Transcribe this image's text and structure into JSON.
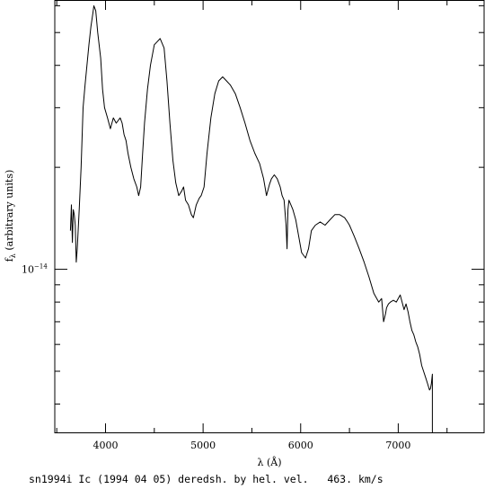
{
  "chart_data": {
    "type": "line",
    "title": "",
    "xlabel": "λ (Å)",
    "ylabel": "f_λ (arbitrary units)",
    "ylabel_main": "f",
    "ylabel_sub": "λ",
    "ylabel_rest": " (arbitrary units)",
    "xlim": [
      3480,
      7880
    ],
    "ylim": [
      3.3e-15,
      6.2e-14
    ],
    "yscale": "log",
    "x_ticks": [
      4000,
      5000,
      6000,
      7000
    ],
    "x_tick_labels": [
      "4000",
      "5000",
      "6000",
      "7000"
    ],
    "y_labeled_tick": {
      "value": 1e-14,
      "mantissa": "10",
      "exponent": "−14"
    },
    "grid": false,
    "series": [
      {
        "x": [
          3640,
          3650,
          3660,
          3670,
          3680,
          3690,
          3700,
          3710,
          3730,
          3750,
          3770,
          3790,
          3810,
          3830,
          3850,
          3870,
          3880,
          3900,
          3920,
          3950,
          3970,
          3990,
          4020,
          4050,
          4080,
          4110,
          4150,
          4170,
          4190,
          4210,
          4230,
          4260,
          4290,
          4320,
          4340,
          4360,
          4380,
          4400,
          4430,
          4460,
          4500,
          4530,
          4560,
          4600,
          4630,
          4660,
          4690,
          4720,
          4750,
          4780,
          4800,
          4820,
          4850,
          4880,
          4900,
          4930,
          4960,
          4980,
          5010,
          5040,
          5080,
          5120,
          5160,
          5200,
          5240,
          5280,
          5330,
          5380,
          5430,
          5480,
          5530,
          5580,
          5620,
          5650,
          5680,
          5700,
          5730,
          5760,
          5790,
          5810,
          5830,
          5850,
          5860,
          5870,
          5880,
          5900,
          5920,
          5950,
          5980,
          6010,
          6050,
          6080,
          6110,
          6150,
          6200,
          6250,
          6300,
          6350,
          6400,
          6450,
          6480,
          6500,
          6550,
          6600,
          6650,
          6700,
          6750,
          6800,
          6830,
          6850,
          6870,
          6880,
          6900,
          6920,
          6950,
          6980,
          7000,
          7020,
          7040,
          7060,
          7080,
          7100,
          7120,
          7140,
          7160,
          7180,
          7200,
          7220,
          7240,
          7260,
          7280,
          7300,
          7320,
          7330,
          7340,
          7350
        ],
        "y": [
          1.3e-14,
          1.55e-14,
          1.2e-14,
          1.5e-14,
          1.45e-14,
          1.35e-14,
          1.05e-14,
          1.15e-14,
          1.5e-14,
          2e-14,
          3e-14,
          3.5e-14,
          4e-14,
          4.6e-14,
          5.2e-14,
          5.7e-14,
          6e-14,
          5.8e-14,
          5e-14,
          4.2e-14,
          3.4e-14,
          3e-14,
          2.8e-14,
          2.6e-14,
          2.8e-14,
          2.7e-14,
          2.8e-14,
          2.7e-14,
          2.5e-14,
          2.4e-14,
          2.2e-14,
          2e-14,
          1.85e-14,
          1.75e-14,
          1.65e-14,
          1.75e-14,
          2.2e-14,
          2.7e-14,
          3.4e-14,
          4e-14,
          4.6e-14,
          4.7e-14,
          4.8e-14,
          4.5e-14,
          3.6e-14,
          2.7e-14,
          2.1e-14,
          1.8e-14,
          1.65e-14,
          1.7e-14,
          1.75e-14,
          1.6e-14,
          1.55e-14,
          1.45e-14,
          1.42e-14,
          1.55e-14,
          1.62e-14,
          1.65e-14,
          1.75e-14,
          2.2e-14,
          2.8e-14,
          3.3e-14,
          3.6e-14,
          3.7e-14,
          3.6e-14,
          3.5e-14,
          3.3e-14,
          3e-14,
          2.7e-14,
          2.4e-14,
          2.2e-14,
          2.05e-14,
          1.85e-14,
          1.65e-14,
          1.78e-14,
          1.85e-14,
          1.9e-14,
          1.85e-14,
          1.75e-14,
          1.65e-14,
          1.6e-14,
          1.35e-14,
          1.15e-14,
          1.5e-14,
          1.6e-14,
          1.55e-14,
          1.5e-14,
          1.4e-14,
          1.25e-14,
          1.12e-14,
          1.08e-14,
          1.15e-14,
          1.3e-14,
          1.35e-14,
          1.38e-14,
          1.35e-14,
          1.4e-14,
          1.45e-14,
          1.45e-14,
          1.42e-14,
          1.38e-14,
          1.35e-14,
          1.25e-14,
          1.15e-14,
          1.05e-14,
          9.5e-15,
          8.5e-15,
          8e-15,
          8.2e-15,
          7e-15,
          7.4e-15,
          7.7e-15,
          7.9e-15,
          8e-15,
          8.1e-15,
          8e-15,
          8.2e-15,
          8.4e-15,
          8e-15,
          7.6e-15,
          7.9e-15,
          7.5e-15,
          7e-15,
          6.6e-15,
          6.4e-15,
          6.1e-15,
          5.9e-15,
          5.6e-15,
          5.2e-15,
          5e-15,
          4.8e-15,
          4.6e-15,
          4.4e-15,
          4.45e-15,
          4.6e-15,
          4.9e-15
        ]
      }
    ]
  },
  "caption": "sn1994i Ic (1994 04 05) deredsh. by hel. vel.   463. km/s"
}
